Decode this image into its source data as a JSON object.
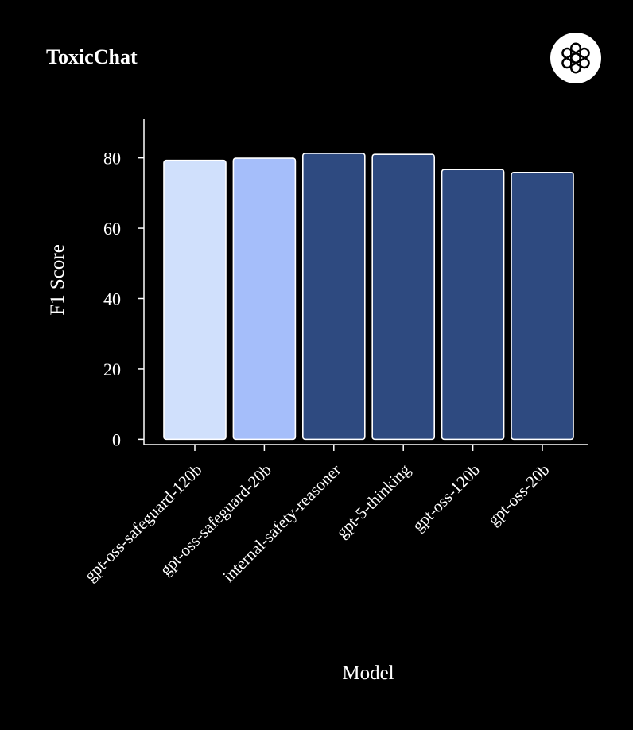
{
  "chart_data": {
    "type": "bar",
    "title": "ToxicChat",
    "xlabel": "Model",
    "ylabel": "F1 Score",
    "categories": [
      "gpt-oss-safeguard-120b",
      "gpt-oss-safeguard-20b",
      "internal-safety-reasoner",
      "gpt-5-thinking",
      "gpt-oss-120b",
      "gpt-oss-20b"
    ],
    "values": [
      79.3,
      79.9,
      81.3,
      81.0,
      76.7,
      75.9
    ],
    "colors": [
      "#d0e0fc",
      "#a5befa",
      "#2e4a80",
      "#2e4a80",
      "#2e4a80",
      "#2e4a80"
    ],
    "bar_outline_color": "#ffffff",
    "yticks": [
      0,
      20,
      40,
      60,
      80
    ],
    "ylim": [
      -1.5,
      91
    ],
    "grid": false,
    "legend": "none"
  },
  "brand": {
    "logo_icon": "openai-logo-icon",
    "background": "#000000",
    "text_color": "#ffffff"
  }
}
